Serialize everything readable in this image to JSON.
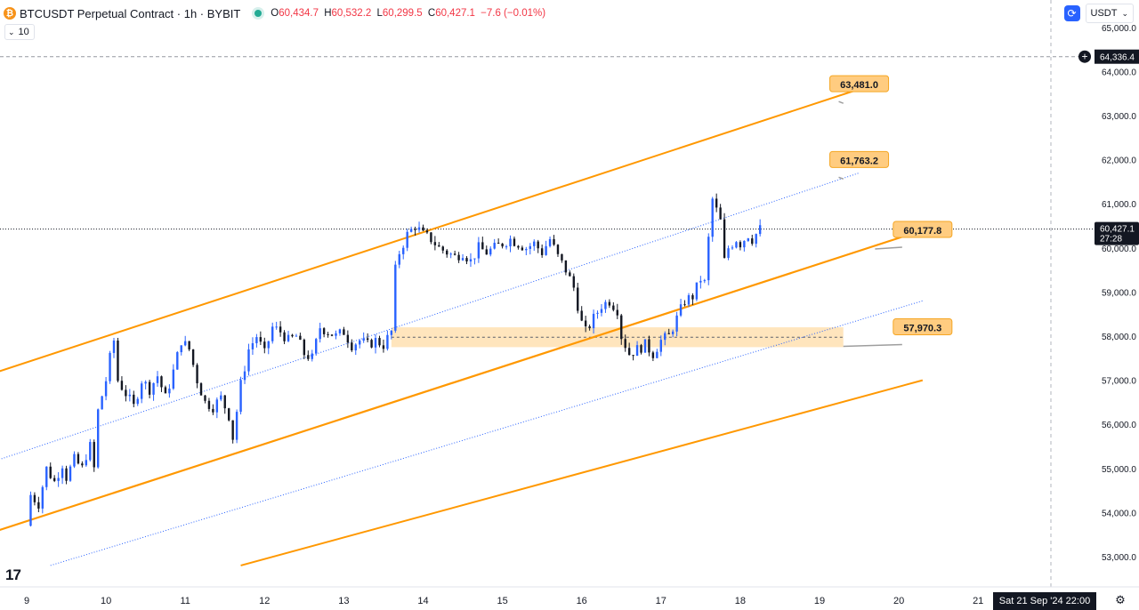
{
  "header": {
    "coin_glyph": "₿",
    "title": "BTCUSDT Perpetual Contract · 1h · BYBIT",
    "ohlc": [
      {
        "k": "O",
        "v": "60,434.7"
      },
      {
        "k": "H",
        "v": "60,532.2"
      },
      {
        "k": "L",
        "v": "60,299.5"
      },
      {
        "k": "C",
        "v": "60,427.1"
      },
      {
        "k": "",
        "v": "−7.6 (−0.01%)"
      }
    ],
    "volume_label": "10"
  },
  "controls": {
    "currency": "USDT",
    "date_box": "Sat 21 Sep '24   22:00"
  },
  "colors": {
    "up": "#2962ff",
    "down": "#131722",
    "channel": "#ff9800",
    "median": "#2962ff",
    "zone": "#ffe0b2",
    "label_bg": "#ffcc80",
    "label_border": "#f5a623"
  },
  "chart_data": {
    "type": "candlestick",
    "symbol": "BTCUSDT",
    "timeframe": "1h",
    "x_ticks": [
      "9",
      "10",
      "11",
      "12",
      "13",
      "14",
      "15",
      "16",
      "17",
      "18",
      "19",
      "20",
      "21"
    ],
    "y_ticks": [
      "53,000.0",
      "54,000.0",
      "55,000.0",
      "56,000.0",
      "57,000.0",
      "58,000.0",
      "59,000.0",
      "60,000.0",
      "61,000.0",
      "62,000.0",
      "63,000.0",
      "64,000.0",
      "65,000.0"
    ],
    "ylim": [
      52500,
      65400
    ],
    "last_price": {
      "value": "60,427.1",
      "countdown": "27:28",
      "numeric": 60427.1
    },
    "crosshair_price": {
      "value": "64,336.4",
      "numeric": 64336.4
    },
    "price_path": [
      [
        9.0,
        53700
      ],
      [
        9.05,
        54400
      ],
      [
        9.15,
        54200
      ],
      [
        9.25,
        55000
      ],
      [
        9.35,
        54700
      ],
      [
        9.45,
        55100
      ],
      [
        9.5,
        54800
      ],
      [
        9.6,
        55200
      ],
      [
        9.7,
        55000
      ],
      [
        9.75,
        55300
      ],
      [
        9.8,
        55500
      ],
      [
        9.85,
        55000
      ],
      [
        9.9,
        56300
      ],
      [
        10.0,
        57000
      ],
      [
        10.05,
        57500
      ],
      [
        10.1,
        57900
      ],
      [
        10.15,
        57000
      ],
      [
        10.25,
        56700
      ],
      [
        10.35,
        56400
      ],
      [
        10.45,
        57000
      ],
      [
        10.55,
        56800
      ],
      [
        10.65,
        57100
      ],
      [
        10.75,
        56600
      ],
      [
        10.85,
        57200
      ],
      [
        10.95,
        57900
      ],
      [
        11.05,
        57700
      ],
      [
        11.15,
        57000
      ],
      [
        11.25,
        56500
      ],
      [
        11.35,
        56400
      ],
      [
        11.45,
        56600
      ],
      [
        11.55,
        56200
      ],
      [
        11.6,
        55700
      ],
      [
        11.7,
        56900
      ],
      [
        11.8,
        57700
      ],
      [
        11.9,
        58000
      ],
      [
        12.0,
        57600
      ],
      [
        12.1,
        58200
      ],
      [
        12.2,
        58100
      ],
      [
        12.3,
        57900
      ],
      [
        12.4,
        58000
      ],
      [
        12.5,
        57600
      ],
      [
        12.6,
        57500
      ],
      [
        12.7,
        58200
      ],
      [
        12.8,
        58100
      ],
      [
        12.9,
        58000
      ],
      [
        13.0,
        58100
      ],
      [
        13.1,
        57800
      ],
      [
        13.2,
        57900
      ],
      [
        13.3,
        57800
      ],
      [
        13.4,
        57900
      ],
      [
        13.5,
        57800
      ],
      [
        13.6,
        58100
      ],
      [
        13.65,
        59500
      ],
      [
        13.7,
        59900
      ],
      [
        13.8,
        60300
      ],
      [
        13.9,
        60500
      ],
      [
        14.0,
        60300
      ],
      [
        14.1,
        60200
      ],
      [
        14.2,
        60000
      ],
      [
        14.3,
        59900
      ],
      [
        14.4,
        59800
      ],
      [
        14.5,
        59900
      ],
      [
        14.6,
        59700
      ],
      [
        14.7,
        60000
      ],
      [
        14.8,
        59900
      ],
      [
        14.9,
        60000
      ],
      [
        15.0,
        60100
      ],
      [
        15.1,
        60200
      ],
      [
        15.2,
        60100
      ],
      [
        15.3,
        60000
      ],
      [
        15.4,
        60100
      ],
      [
        15.5,
        59900
      ],
      [
        15.6,
        60200
      ],
      [
        15.7,
        59800
      ],
      [
        15.8,
        59500
      ],
      [
        15.9,
        59100
      ],
      [
        16.0,
        58300
      ],
      [
        16.05,
        58100
      ],
      [
        16.15,
        58400
      ],
      [
        16.25,
        58700
      ],
      [
        16.35,
        58800
      ],
      [
        16.45,
        58600
      ],
      [
        16.5,
        58000
      ],
      [
        16.6,
        57600
      ],
      [
        16.7,
        57700
      ],
      [
        16.8,
        57800
      ],
      [
        16.9,
        57600
      ],
      [
        17.0,
        57900
      ],
      [
        17.1,
        58000
      ],
      [
        17.2,
        58400
      ],
      [
        17.3,
        58800
      ],
      [
        17.4,
        58900
      ],
      [
        17.5,
        59300
      ],
      [
        17.55,
        59200
      ],
      [
        17.6,
        60200
      ],
      [
        17.65,
        61100
      ],
      [
        17.75,
        60600
      ],
      [
        17.8,
        59700
      ],
      [
        17.85,
        60000
      ],
      [
        17.95,
        60200
      ],
      [
        18.0,
        60100
      ],
      [
        18.1,
        60300
      ],
      [
        18.15,
        60200
      ],
      [
        18.25,
        60427
      ]
    ],
    "upper_line": {
      "start": [
        8.65,
        57200
      ],
      "end": [
        19.5,
        63600
      ]
    },
    "median_line": {
      "start": [
        8.65,
        55200
      ],
      "end": [
        19.5,
        61700
      ]
    },
    "mid_line": {
      "start": [
        8.65,
        53600
      ],
      "end": [
        20.3,
        60400
      ]
    },
    "lower_median_line": {
      "start": [
        9.3,
        52800
      ],
      "end": [
        20.3,
        58800
      ]
    },
    "lower_line": {
      "start": [
        11.7,
        52800
      ],
      "end": [
        20.3,
        57000
      ]
    },
    "zone": {
      "x_from": 13.6,
      "x_to": 19.3,
      "y_from": 57750,
      "y_to": 58200
    },
    "labels": [
      {
        "text": "63,481.0",
        "x": 19.5,
        "y": 63481,
        "anchor_x": 19.3
      },
      {
        "text": "61,763.2",
        "x": 19.5,
        "y": 61763,
        "anchor_x": 19.3
      },
      {
        "text": "60,177.8",
        "x": 20.3,
        "y": 60178,
        "anchor_x": 19.7
      },
      {
        "text": "57,970.3",
        "x": 20.3,
        "y": 57970,
        "anchor_x": 19.3
      }
    ]
  }
}
